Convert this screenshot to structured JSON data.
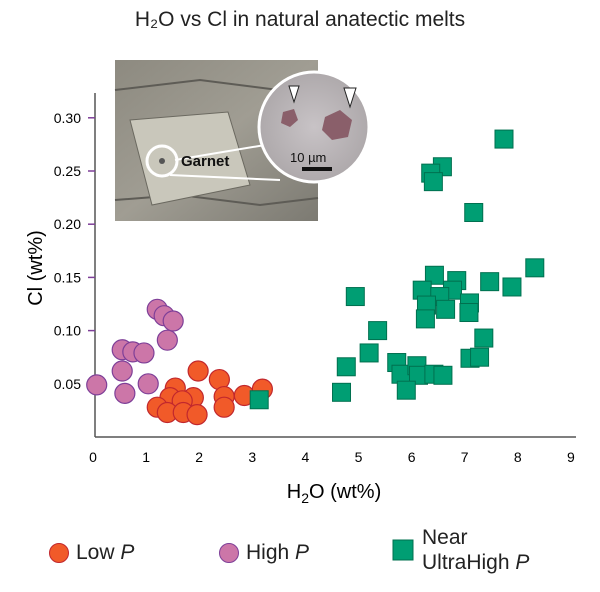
{
  "chart_data": {
    "type": "scatter",
    "title": "H₂O vs Cl in natural anatectic melts",
    "xlabel": "H2O (wt%)",
    "xlabel_main": "H",
    "xlabel_sub": "2",
    "xlabel_rest": "O (wt%)",
    "ylabel": "Cl (wt%)",
    "xlim": [
      0,
      9
    ],
    "ylim": [
      0,
      0.33
    ],
    "xticks": [
      "0",
      "1",
      "2",
      "3",
      "4",
      "5",
      "6",
      "7",
      "8",
      "9"
    ],
    "yticks": [
      "0.05",
      "0.10",
      "0.15",
      "0.20",
      "0.25",
      "0.30"
    ],
    "grid": false,
    "legend_position": "bottom",
    "series": [
      {
        "name": "Low P",
        "label": "Low ",
        "label_italic": "P",
        "marker": "circle",
        "color": "#f15a29",
        "edge": "#c1272d",
        "x": [
          1.98,
          2.38,
          1.55,
          1.89,
          1.45,
          1.68,
          1.21,
          1.4,
          1.7,
          1.96,
          2.47,
          2.47,
          2.85,
          3.19
        ],
        "y": [
          0.062,
          0.054,
          0.046,
          0.037,
          0.037,
          0.034,
          0.028,
          0.023,
          0.023,
          0.021,
          0.038,
          0.028,
          0.039,
          0.045
        ]
      },
      {
        "name": "High P",
        "label": "High ",
        "label_italic": "P",
        "marker": "circle",
        "color": "#cc76a8",
        "edge": "#7e3f98",
        "x": [
          1.21,
          1.34,
          1.51,
          1.4,
          0.55,
          0.75,
          0.96,
          0.55,
          0.07,
          0.6,
          1.04
        ],
        "y": [
          0.12,
          0.114,
          0.109,
          0.091,
          0.082,
          0.08,
          0.079,
          0.062,
          0.049,
          0.041,
          0.05
        ]
      },
      {
        "name": "Near UltraHigh P",
        "label_line1": "Near",
        "label": "UltraHigh ",
        "label_italic": "P",
        "marker": "square",
        "color": "#009e73",
        "edge": "#00704f",
        "x": [
          7.74,
          6.58,
          6.36,
          6.41,
          7.17,
          8.32,
          6.43,
          6.85,
          7.47,
          7.89,
          6.2,
          6.77,
          6.53,
          6.28,
          6.64,
          7.09,
          7.08,
          6.26,
          4.94,
          5.36,
          5.2,
          4.77,
          4.68,
          5.72,
          5.8,
          6.1,
          6.13,
          5.9,
          6.42,
          6.59,
          7.36,
          7.1,
          7.28,
          3.13
        ],
        "y": [
          0.28,
          0.254,
          0.248,
          0.24,
          0.211,
          0.159,
          0.152,
          0.147,
          0.146,
          0.141,
          0.138,
          0.138,
          0.132,
          0.124,
          0.12,
          0.126,
          0.117,
          0.111,
          0.132,
          0.1,
          0.079,
          0.066,
          0.042,
          0.07,
          0.059,
          0.067,
          0.058,
          0.044,
          0.059,
          0.058,
          0.093,
          0.074,
          0.075,
          0.035
        ]
      }
    ],
    "inset": {
      "label": "Garnet",
      "scale_label": "10 µm"
    }
  }
}
